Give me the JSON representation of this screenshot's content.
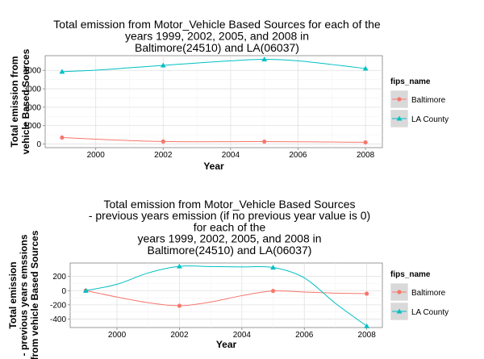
{
  "chart_data": [
    {
      "type": "line",
      "title_lines": [
        "Total emission from Motor_Vehicle Based Sources for each of the",
        "years 1999, 2002, 2005, and 2008 in",
        "Baltimore(24510) and LA(06037)"
      ],
      "xlabel": "Year",
      "ylabel_lines": [
        "Total emission from",
        "vehicle Based Sources"
      ],
      "xlim": [
        1998.5,
        2008.5
      ],
      "ylim": [
        -200,
        4800
      ],
      "x_ticks": [
        2000,
        2002,
        2004,
        2006,
        2008
      ],
      "y_ticks": [
        0,
        1000,
        2000,
        3000,
        4000
      ],
      "grid": true,
      "legend": {
        "title": "fips_name",
        "position": "right"
      },
      "series": [
        {
          "name": "Baltimore",
          "color": "#F8766D",
          "marker": "circle",
          "x": [
            1999,
            2002,
            2005,
            2008
          ],
          "y": [
            347,
            134,
            130,
            88
          ],
          "smooth_x": [
            1999,
            2000,
            2001,
            2002,
            2003,
            2004,
            2005,
            2006,
            2007,
            2008
          ],
          "smooth_y": [
            347,
            260,
            185,
            134,
            120,
            125,
            130,
            120,
            105,
            88
          ]
        },
        {
          "name": "LA County",
          "color": "#00BFC4",
          "marker": "triangle",
          "x": [
            1999,
            2002,
            2005,
            2008
          ],
          "y": [
            3931,
            4274,
            4601,
            4101
          ],
          "smooth_x": [
            1999,
            2000,
            2001,
            2002,
            2003,
            2004,
            2005,
            2006,
            2007,
            2008
          ],
          "smooth_y": [
            3931,
            4010,
            4140,
            4274,
            4400,
            4520,
            4601,
            4520,
            4320,
            4101
          ]
        }
      ]
    },
    {
      "type": "line",
      "title_lines": [
        "Total emission from Motor_Vehicle Based Sources",
        "- previous years emission (if no previous year value is 0)",
        "for each of the",
        "years 1999, 2002, 2005, and 2008 in",
        "Baltimore(24510) and LA(06037)"
      ],
      "xlabel": "Year",
      "ylabel_lines": [
        "Total emission",
        "- previous years emssions",
        "from vehicle Based Sources"
      ],
      "xlim": [
        1998.5,
        2008.5
      ],
      "ylim": [
        -520,
        390
      ],
      "x_ticks": [
        2000,
        2002,
        2004,
        2006,
        2008
      ],
      "y_ticks": [
        -400,
        -200,
        0,
        200
      ],
      "grid": true,
      "legend": {
        "title": "fips_name",
        "position": "right"
      },
      "series": [
        {
          "name": "Baltimore",
          "color": "#F8766D",
          "marker": "circle",
          "x": [
            1999,
            2002,
            2005,
            2008
          ],
          "y": [
            0,
            -213,
            -4,
            -42
          ],
          "smooth_x": [
            1999,
            2000,
            2001,
            2002,
            2003,
            2004,
            2005,
            2006,
            2007,
            2008
          ],
          "smooth_y": [
            0,
            -90,
            -170,
            -213,
            -160,
            -70,
            -4,
            -20,
            -35,
            -42
          ]
        },
        {
          "name": "LA County",
          "color": "#00BFC4",
          "marker": "triangle",
          "x": [
            1999,
            2002,
            2005,
            2008
          ],
          "y": [
            0,
            343,
            327,
            -500
          ],
          "smooth_x": [
            1999,
            2000,
            2001,
            2002,
            2003,
            2004,
            2005,
            2006,
            2007,
            2008
          ],
          "smooth_y": [
            0,
            90,
            250,
            343,
            340,
            335,
            327,
            180,
            -180,
            -500
          ]
        }
      ]
    }
  ]
}
